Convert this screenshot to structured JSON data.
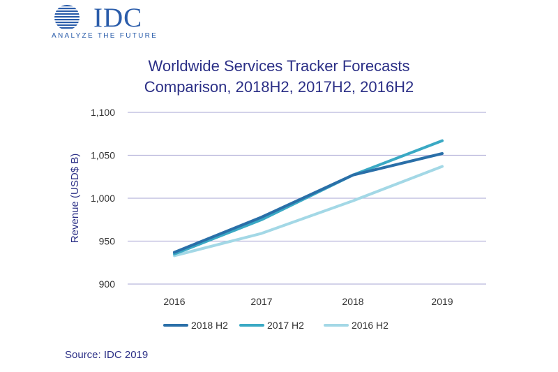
{
  "logo": {
    "brand": "IDC",
    "tagline": "ANALYZE THE FUTURE",
    "icon": "idc-globe-icon",
    "color": "#2a5caa"
  },
  "chart_data": {
    "type": "line",
    "title_lines": [
      "Worldwide Services Tracker Forecasts",
      "Comparison, 2018H2, 2017H2, 2016H2"
    ],
    "xlabel": "",
    "ylabel": "Revenue (USD$ B)",
    "categories": [
      "2016",
      "2017",
      "2018",
      "2019"
    ],
    "ylim": [
      900,
      1100
    ],
    "yticks": [
      900,
      950,
      1000,
      1050,
      1100
    ],
    "ytick_labels": [
      "900",
      "950",
      "1,000",
      "1,050",
      "1,100"
    ],
    "grid": true,
    "legend_position": "bottom",
    "series": [
      {
        "name": "2018 H2",
        "color": "#2a6fa8",
        "values": [
          937,
          978,
          1027,
          1052
        ]
      },
      {
        "name": "2017 H2",
        "color": "#3aa9c4",
        "values": [
          935,
          975,
          1027,
          1067
        ]
      },
      {
        "name": "2016 H2",
        "color": "#a3d8e6",
        "values": [
          933,
          959,
          997,
          1037
        ]
      }
    ]
  },
  "source": "Source: IDC 2019"
}
